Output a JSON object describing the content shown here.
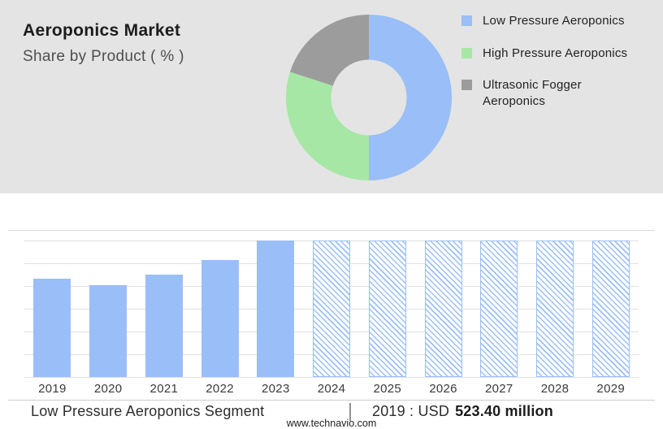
{
  "header": {
    "title": "Aeroponics Market",
    "subtitle": "Share by Product ( % )"
  },
  "legend": [
    {
      "label": "Low Pressure Aeroponics",
      "color": "#9abef7"
    },
    {
      "label": "High Pressure Aeroponics",
      "color": "#a6e7a6"
    },
    {
      "label": "Ultrasonic Fogger Aeroponics",
      "color": "#9c9c9c"
    }
  ],
  "chart_data": [
    {
      "type": "pie",
      "title": "Share by Product ( % )",
      "labels": [
        "Low Pressure Aeroponics",
        "High Pressure Aeroponics",
        "Ultrasonic Fogger Aeroponics"
      ],
      "values": [
        50,
        30,
        20
      ],
      "colors": [
        "#9abef7",
        "#a6e7a6",
        "#9c9c9c"
      ],
      "donut_hole": 0.46,
      "legend_position": "right",
      "note": "slice percentages estimated from arc angles; no numeric labels shown"
    },
    {
      "type": "bar",
      "categories": [
        "2019",
        "2020",
        "2021",
        "2022",
        "2023",
        "2024",
        "2025",
        "2026",
        "2027",
        "2028",
        "2029"
      ],
      "values": [
        72,
        67,
        75,
        86,
        100,
        100,
        100,
        100,
        100,
        100,
        100
      ],
      "ylim": [
        0,
        100
      ],
      "ylabel": "",
      "xlabel": "",
      "grid": true,
      "gridline_count": 7,
      "solid_color": "#9abef7",
      "forecast_start_index": 5,
      "forecast_style": "hatched",
      "note": "y-axis unlabeled; values are relative bar heights (% of tallest bar); 2019 corresponds to USD 523.40 million"
    }
  ],
  "summary": {
    "segment_label": "Low Pressure Aeroponics Segment",
    "separator": "|",
    "year_prefix": "2019 : USD",
    "value": "523.40 million"
  },
  "footer": {
    "website": "www.technavio.com"
  }
}
